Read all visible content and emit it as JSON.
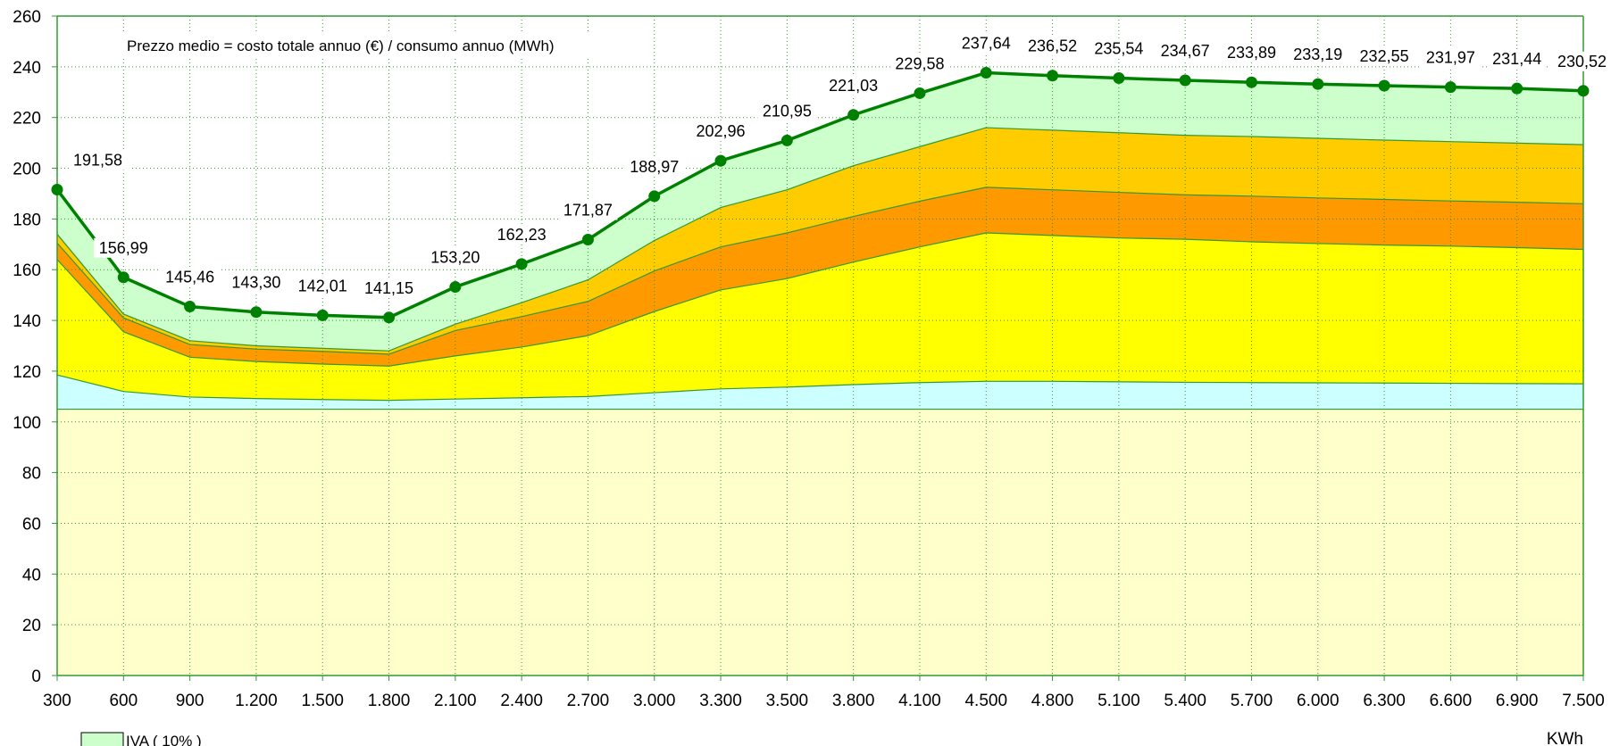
{
  "chart_data": {
    "type": "area",
    "title": "",
    "annotation": "Prezzo medio = costo totale annuo (€) / consumo annuo (MWh)",
    "xlabel": "KWh",
    "ylabel": "",
    "ylim": [
      0,
      260
    ],
    "y_ticks": [
      "0",
      "20",
      "40",
      "60",
      "80",
      "100",
      "120",
      "140",
      "160",
      "180",
      "200",
      "220",
      "240",
      "260"
    ],
    "categories": [
      "300",
      "600",
      "900",
      "1.200",
      "1.500",
      "1.800",
      "2.100",
      "2.400",
      "2.700",
      "3.000",
      "3.300",
      "3.500",
      "3.800",
      "4.100",
      "4.500",
      "4.800",
      "5.100",
      "5.400",
      "5.700",
      "6.000",
      "6.300",
      "6.600",
      "6.900",
      "7.500"
    ],
    "grid": "dotted",
    "legend_position": "bottom-left",
    "stacked_boundaries": [
      {
        "color": "#FFFFCC",
        "values": [
          105,
          105,
          105,
          105,
          105,
          105,
          105,
          105,
          105,
          105,
          105,
          105,
          105,
          105,
          105,
          105,
          105,
          105,
          105,
          105,
          105,
          105,
          105,
          105
        ]
      },
      {
        "color": "#CCFFFF",
        "values": [
          118.5,
          112,
          109.8,
          109.2,
          108.8,
          108.5,
          109,
          109.5,
          110,
          111.5,
          113,
          113.7,
          114.7,
          115.5,
          116,
          116,
          115.8,
          115.6,
          115.5,
          115.4,
          115.3,
          115.2,
          115.1,
          115
        ]
      },
      {
        "color": "#FFFF00",
        "values": [
          164,
          135.5,
          125.5,
          123.8,
          122.8,
          122,
          126,
          129.5,
          134,
          143.5,
          152,
          156.5,
          163,
          169,
          174.5,
          173.5,
          172.5,
          172,
          171,
          170.3,
          169.7,
          169.3,
          168.7,
          168
        ]
      },
      {
        "color": "#FF9900",
        "values": [
          170.5,
          141,
          130.5,
          128.7,
          127.8,
          126.7,
          136,
          141.5,
          147.5,
          159.5,
          169,
          174.5,
          181,
          187,
          192.5,
          191.5,
          190.5,
          189.5,
          189,
          188.3,
          187.7,
          187.1,
          186.6,
          186
        ]
      },
      {
        "color": "#FFCC00",
        "values": [
          174,
          142.5,
          132,
          130,
          129,
          128,
          138.5,
          147,
          156,
          171.5,
          184.5,
          191.5,
          201,
          208.5,
          216,
          215,
          214,
          213,
          212.5,
          211.8,
          211.1,
          210.5,
          209.9,
          209.3
        ]
      }
    ],
    "series": [
      {
        "name": "Prezzo medio",
        "color": "#008000",
        "values": [
          191.58,
          156.99,
          145.46,
          143.3,
          142.01,
          141.15,
          153.2,
          162.23,
          171.87,
          188.97,
          202.96,
          210.95,
          221.03,
          229.58,
          237.64,
          236.52,
          235.54,
          234.67,
          233.89,
          233.19,
          232.55,
          231.97,
          231.44,
          230.52
        ]
      }
    ],
    "series_fill_color": "#CCFFCC",
    "data_labels": [
      "191,58",
      "156,99",
      "145,46",
      "143,30",
      "142,01",
      "141,15",
      "153,20",
      "162,23",
      "171,87",
      "188,97",
      "202,96",
      "210,95",
      "221,03",
      "229,58",
      "237,64",
      "236,52",
      "235,54",
      "234,67",
      "233,89",
      "233,19",
      "232,55",
      "231,97",
      "231,44",
      "230,52"
    ],
    "legend": [
      {
        "label": "IVA ( 10% )",
        "color": "#CCFFCC"
      }
    ]
  }
}
